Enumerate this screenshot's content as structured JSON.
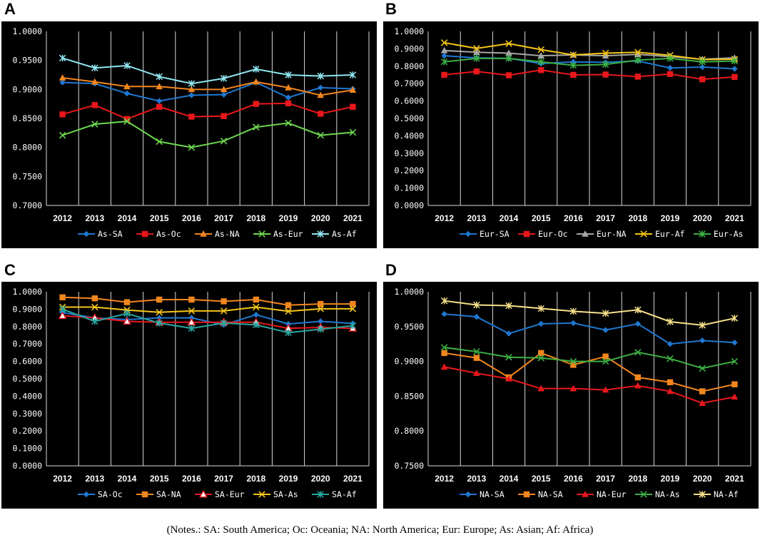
{
  "panels": [
    {
      "letter": "A",
      "chart_data": {
        "type": "line",
        "categories": [
          "2012",
          "2013",
          "2014",
          "2015",
          "2016",
          "2017",
          "2018",
          "2019",
          "2020",
          "2021"
        ],
        "ylim": [
          0.7,
          1.0
        ],
        "yticks": [
          "1.0000",
          "0.9500",
          "0.9000",
          "0.8500",
          "0.8000",
          "0.7500",
          "0.7000"
        ],
        "series": [
          {
            "name": "As-SA",
            "color": "#1F77D0",
            "marker": "diamond",
            "values": [
              0.912,
              0.91,
              0.893,
              0.88,
              0.89,
              0.891,
              0.912,
              0.886,
              0.903,
              0.901
            ]
          },
          {
            "name": "As-Oc",
            "color": "#E8171B",
            "marker": "square",
            "values": [
              0.857,
              0.873,
              0.849,
              0.87,
              0.853,
              0.854,
              0.875,
              0.876,
              0.858,
              0.87
            ]
          },
          {
            "name": "As-NA",
            "color": "#F2861E",
            "marker": "triangle",
            "values": [
              0.92,
              0.913,
              0.905,
              0.905,
              0.9,
              0.9,
              0.913,
              0.903,
              0.89,
              0.899
            ]
          },
          {
            "name": "As-Eur",
            "color": "#6CD64E",
            "marker": "x",
            "values": [
              0.821,
              0.84,
              0.845,
              0.81,
              0.8,
              0.811,
              0.835,
              0.842,
              0.821,
              0.826
            ]
          },
          {
            "name": "As-Af",
            "color": "#8FE6F0",
            "marker": "star",
            "values": [
              0.954,
              0.937,
              0.941,
              0.922,
              0.91,
              0.919,
              0.935,
              0.925,
              0.923,
              0.925
            ]
          }
        ]
      }
    },
    {
      "letter": "B",
      "chart_data": {
        "type": "line",
        "categories": [
          "2012",
          "2013",
          "2014",
          "2015",
          "2016",
          "2017",
          "2018",
          "2019",
          "2020",
          "2021"
        ],
        "ylim": [
          0.0,
          1.0
        ],
        "yticks": [
          "1.0000",
          "0.9000",
          "0.8000",
          "0.7000",
          "0.6000",
          "0.5000",
          "0.4000",
          "0.3000",
          "0.2000",
          "0.1000",
          "0.0000"
        ],
        "series": [
          {
            "name": "Eur-SA",
            "color": "#1F77D0",
            "marker": "diamond",
            "values": [
              0.86,
              0.848,
              0.845,
              0.815,
              0.825,
              0.822,
              0.83,
              0.79,
              0.795,
              0.785
            ]
          },
          {
            "name": "Eur-Oc",
            "color": "#E8171B",
            "marker": "square",
            "values": [
              0.75,
              0.77,
              0.748,
              0.778,
              0.75,
              0.752,
              0.74,
              0.755,
              0.725,
              0.738
            ]
          },
          {
            "name": "Eur-NA",
            "color": "#A6A6A6",
            "marker": "triangle",
            "values": [
              0.89,
              0.88,
              0.875,
              0.86,
              0.865,
              0.86,
              0.868,
              0.855,
              0.84,
              0.848
            ]
          },
          {
            "name": "Eur-Af",
            "color": "#F5C518",
            "marker": "x",
            "values": [
              0.935,
              0.902,
              0.93,
              0.895,
              0.865,
              0.875,
              0.88,
              0.862,
              0.838,
              0.84
            ]
          },
          {
            "name": "Eur-As",
            "color": "#3CB043",
            "marker": "star",
            "values": [
              0.825,
              0.845,
              0.845,
              0.825,
              0.805,
              0.81,
              0.835,
              0.845,
              0.825,
              0.83
            ]
          }
        ]
      }
    },
    {
      "letter": "C",
      "chart_data": {
        "type": "line",
        "categories": [
          "2012",
          "2013",
          "2014",
          "2015",
          "2016",
          "2017",
          "2018",
          "2019",
          "2020",
          "2021"
        ],
        "ylim": [
          0.0,
          1.0
        ],
        "yticks": [
          "1.0000",
          "0.9000",
          "0.8000",
          "0.7000",
          "0.6000",
          "0.5000",
          "0.4000",
          "0.3000",
          "0.2000",
          "0.1000",
          "0.0000"
        ],
        "series": [
          {
            "name": "SA-Oc",
            "color": "#1F77D0",
            "marker": "diamond",
            "values": [
              0.88,
              0.85,
              0.84,
              0.85,
              0.85,
              0.81,
              0.868,
              0.815,
              0.83,
              0.818
            ]
          },
          {
            "name": "SA-NA",
            "color": "#F2861E",
            "marker": "square",
            "values": [
              0.968,
              0.962,
              0.94,
              0.955,
              0.955,
              0.945,
              0.955,
              0.923,
              0.93,
              0.93
            ]
          },
          {
            "name": "SA-Eur",
            "color": "#E8171B",
            "marker": "triangle-open",
            "values": [
              0.862,
              0.85,
              0.83,
              0.825,
              0.825,
              0.825,
              0.825,
              0.79,
              0.795,
              0.79
            ]
          },
          {
            "name": "SA-As",
            "color": "#F5C518",
            "marker": "x",
            "values": [
              0.912,
              0.912,
              0.895,
              0.882,
              0.89,
              0.89,
              0.912,
              0.888,
              0.902,
              0.902
            ]
          },
          {
            "name": "SA-Af",
            "color": "#27A6A0",
            "marker": "star",
            "values": [
              0.9,
              0.83,
              0.875,
              0.82,
              0.79,
              0.82,
              0.81,
              0.765,
              0.785,
              0.805
            ]
          }
        ]
      }
    },
    {
      "letter": "D",
      "chart_data": {
        "type": "line",
        "categories": [
          "2012",
          "2013",
          "2014",
          "2015",
          "2016",
          "2017",
          "2018",
          "2019",
          "2020",
          "2021"
        ],
        "ylim": [
          0.75,
          1.0
        ],
        "yticks": [
          "1.0000",
          "0.9500",
          "0.9000",
          "0.8500",
          "0.8000",
          "0.7500"
        ],
        "series": [
          {
            "name": "NA-SA",
            "color": "#1F77D0",
            "marker": "diamond",
            "values": [
              0.968,
              0.964,
              0.94,
              0.954,
              0.955,
              0.945,
              0.954,
              0.925,
              0.93,
              0.927
            ]
          },
          {
            "name": "NA-SA",
            "color": "#F2861E",
            "marker": "square",
            "values": [
              0.912,
              0.905,
              0.877,
              0.912,
              0.895,
              0.907,
              0.877,
              0.87,
              0.857,
              0.867
            ]
          },
          {
            "name": "NA-Eur",
            "color": "#E8171B",
            "marker": "triangle",
            "values": [
              0.892,
              0.883,
              0.875,
              0.861,
              0.861,
              0.859,
              0.865,
              0.857,
              0.84,
              0.849
            ]
          },
          {
            "name": "NA-As",
            "color": "#3CB043",
            "marker": "x",
            "values": [
              0.92,
              0.914,
              0.906,
              0.905,
              0.9,
              0.9,
              0.913,
              0.904,
              0.89,
              0.9
            ]
          },
          {
            "name": "NA-Af",
            "color": "#F5E08A",
            "marker": "star",
            "values": [
              0.987,
              0.981,
              0.98,
              0.976,
              0.972,
              0.969,
              0.974,
              0.957,
              0.952,
              0.962
            ]
          }
        ]
      }
    }
  ],
  "notes": "(Notes.: SA: South America; Oc: Oceania; NA: North America; Eur: Europe; As: Asian; Af: Africa)"
}
